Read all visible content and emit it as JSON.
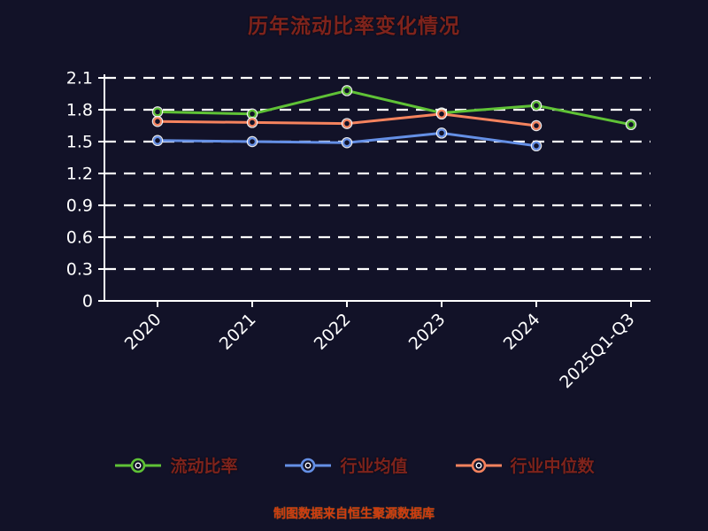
{
  "title": "历年流动比率变化情况",
  "caption": "制图数据来自恒生聚源数据库",
  "colors": {
    "background": "#121228",
    "title_text": "#7e231c",
    "caption_text": "#cf3a10",
    "axis": "#ffffff",
    "grid": "#ffffff"
  },
  "chart_data": {
    "type": "line",
    "title": "历年流动比率变化情况",
    "categories": [
      "2020",
      "2021",
      "2022",
      "2023",
      "2024",
      "2025Q1-Q3"
    ],
    "series": [
      {
        "name": "流动比率",
        "color": "#5fc236",
        "values": [
          1.78,
          1.76,
          1.98,
          1.77,
          1.84,
          1.66
        ]
      },
      {
        "name": "行业均值",
        "color": "#6590e6",
        "values": [
          1.51,
          1.5,
          1.49,
          1.58,
          1.46,
          null
        ]
      },
      {
        "name": "行业中位数",
        "color": "#f5835e",
        "values": [
          1.69,
          1.68,
          1.67,
          1.76,
          1.65,
          null
        ]
      }
    ],
    "ylim": [
      0,
      2.1
    ],
    "y_ticks": [
      0,
      0.3,
      0.6,
      0.9,
      1.2,
      1.5,
      1.8,
      2.1
    ],
    "grid": "horizontal-dashed",
    "legend_position": "bottom",
    "x_tick_rotation": 45
  }
}
